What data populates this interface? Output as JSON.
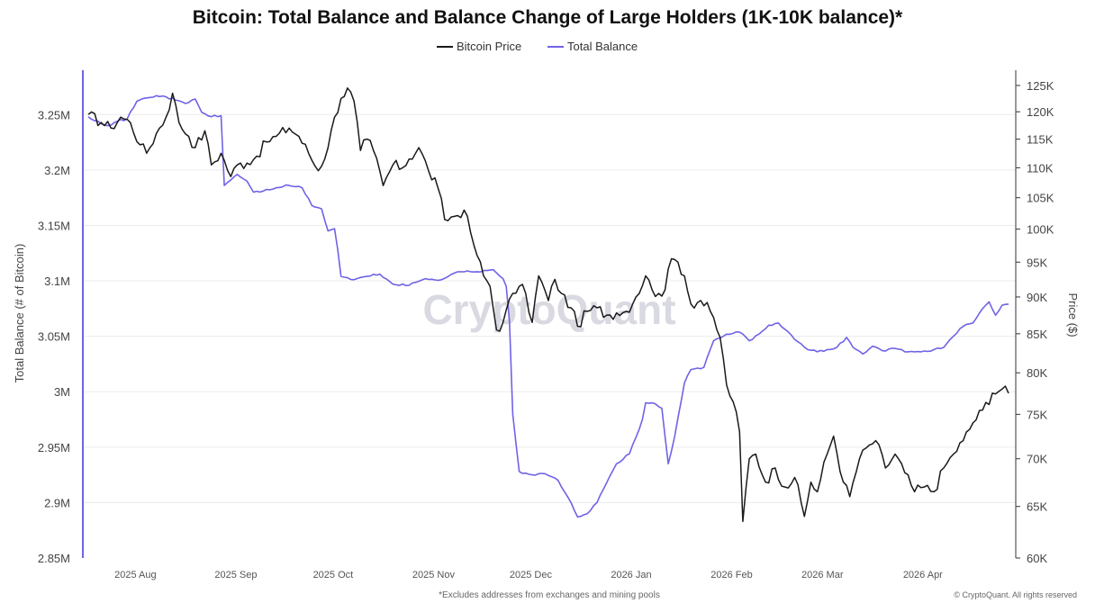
{
  "chart_data": {
    "type": "line",
    "title": "Bitcoin: Total Balance and Balance Change of Large Holders (1K-10K balance)*",
    "ylabel_left": "Total Balance (# of Bitcoin)",
    "ylabel_right": "Price ($)",
    "left_axis": {
      "ticks": [
        "3.25M",
        "3.2M",
        "3.15M",
        "3.1M",
        "3.05M",
        "3M",
        "2.95M",
        "2.9M",
        "2.85M"
      ],
      "tick_values": [
        3250000,
        3200000,
        3150000,
        3100000,
        3050000,
        3000000,
        2950000,
        2900000,
        2850000
      ],
      "ylim": [
        2850000,
        3290000
      ]
    },
    "right_axis": {
      "ticks": [
        "125K",
        "120K",
        "115K",
        "110K",
        "105K",
        "100K",
        "95K",
        "90K",
        "85K",
        "80K",
        "75K",
        "70K",
        "65K",
        "60K"
      ],
      "tick_values": [
        125000,
        120000,
        115000,
        110000,
        105000,
        100000,
        95000,
        90000,
        85000,
        80000,
        75000,
        70000,
        65000,
        60000
      ],
      "scale": "log",
      "ylim": [
        60000,
        128000
      ]
    },
    "x_axis": {
      "ticks": [
        "2025 Aug",
        "2025 Sep",
        "2025 Oct",
        "2025 Nov",
        "2025 Dec",
        "2026 Jan",
        "2026 Feb",
        "2026 Mar",
        "2026 Apr"
      ],
      "tick_dates": [
        "2025-08-01",
        "2025-09-01",
        "2025-10-01",
        "2025-11-01",
        "2025-12-01",
        "2026-01-01",
        "2026-02-01",
        "2026-03-01",
        "2026-04-01"
      ],
      "range": [
        "2025-07-18",
        "2026-04-28"
      ]
    },
    "legend": {
      "position": "top-center"
    },
    "series": [
      {
        "name": "Bitcoin Price",
        "axis": "right",
        "color": "#1a1a1a",
        "points": [
          [
            "2025-07-18",
            119500
          ],
          [
            "2025-07-22",
            118000
          ],
          [
            "2025-07-25",
            117000
          ],
          [
            "2025-07-28",
            119000
          ],
          [
            "2025-07-31",
            118000
          ],
          [
            "2025-08-03",
            114000
          ],
          [
            "2025-08-05",
            112500
          ],
          [
            "2025-08-08",
            116000
          ],
          [
            "2025-08-11",
            119000
          ],
          [
            "2025-08-13",
            123500
          ],
          [
            "2025-08-15",
            118000
          ],
          [
            "2025-08-18",
            115500
          ],
          [
            "2025-08-20",
            113500
          ],
          [
            "2025-08-23",
            116500
          ],
          [
            "2025-08-25",
            110500
          ],
          [
            "2025-08-28",
            112500
          ],
          [
            "2025-08-31",
            108500
          ],
          [
            "2025-09-02",
            110500
          ],
          [
            "2025-09-05",
            110800
          ],
          [
            "2025-09-08",
            112000
          ],
          [
            "2025-09-11",
            114500
          ],
          [
            "2025-09-14",
            115500
          ],
          [
            "2025-09-18",
            117000
          ],
          [
            "2025-09-21",
            115500
          ],
          [
            "2025-09-24",
            112500
          ],
          [
            "2025-09-27",
            109500
          ],
          [
            "2025-09-30",
            113500
          ],
          [
            "2025-10-02",
            119000
          ],
          [
            "2025-10-04",
            122500
          ],
          [
            "2025-10-06",
            124500
          ],
          [
            "2025-10-08",
            122000
          ],
          [
            "2025-10-10",
            113000
          ],
          [
            "2025-10-12",
            115000
          ],
          [
            "2025-10-14",
            113000
          ],
          [
            "2025-10-17",
            107000
          ],
          [
            "2025-10-20",
            110500
          ],
          [
            "2025-10-23",
            110000
          ],
          [
            "2025-10-25",
            111500
          ],
          [
            "2025-10-28",
            113500
          ],
          [
            "2025-10-31",
            109500
          ],
          [
            "2025-11-03",
            106500
          ],
          [
            "2025-11-05",
            101500
          ],
          [
            "2025-11-08",
            102000
          ],
          [
            "2025-11-11",
            103000
          ],
          [
            "2025-11-13",
            99500
          ],
          [
            "2025-11-15",
            96000
          ],
          [
            "2025-11-17",
            93000
          ],
          [
            "2025-11-19",
            91500
          ],
          [
            "2025-11-21",
            85500
          ],
          [
            "2025-11-23",
            86500
          ],
          [
            "2025-11-26",
            90500
          ],
          [
            "2025-11-28",
            91500
          ],
          [
            "2025-11-30",
            90500
          ],
          [
            "2025-12-02",
            86500
          ],
          [
            "2025-12-04",
            93000
          ],
          [
            "2025-12-07",
            89500
          ],
          [
            "2025-12-09",
            92500
          ],
          [
            "2025-12-11",
            90500
          ],
          [
            "2025-12-14",
            88500
          ],
          [
            "2025-12-16",
            86000
          ],
          [
            "2025-12-19",
            88000
          ],
          [
            "2025-12-22",
            88500
          ],
          [
            "2025-12-25",
            87500
          ],
          [
            "2025-12-28",
            87800
          ],
          [
            "2025-12-31",
            88000
          ],
          [
            "2026-01-03",
            90000
          ],
          [
            "2026-01-06",
            93000
          ],
          [
            "2026-01-08",
            91000
          ],
          [
            "2026-01-10",
            90500
          ],
          [
            "2026-01-12",
            91000
          ],
          [
            "2026-01-14",
            95500
          ],
          [
            "2026-01-16",
            95000
          ],
          [
            "2026-01-18",
            93000
          ],
          [
            "2026-01-20",
            89000
          ],
          [
            "2026-01-23",
            89500
          ],
          [
            "2026-01-26",
            88000
          ],
          [
            "2026-01-29",
            84500
          ],
          [
            "2026-01-31",
            78500
          ],
          [
            "2026-02-02",
            76500
          ],
          [
            "2026-02-04",
            73000
          ],
          [
            "2026-02-05",
            63500
          ],
          [
            "2026-02-07",
            70000
          ],
          [
            "2026-02-09",
            70500
          ],
          [
            "2026-02-12",
            67500
          ],
          [
            "2026-02-15",
            69000
          ],
          [
            "2026-02-18",
            67000
          ],
          [
            "2026-02-21",
            68000
          ],
          [
            "2026-02-24",
            64000
          ],
          [
            "2026-02-26",
            67500
          ],
          [
            "2026-02-28",
            66500
          ],
          [
            "2026-03-03",
            70500
          ],
          [
            "2026-03-05",
            72500
          ],
          [
            "2026-03-08",
            67500
          ],
          [
            "2026-03-10",
            66000
          ],
          [
            "2026-03-13",
            70000
          ],
          [
            "2026-03-16",
            71500
          ],
          [
            "2026-03-18",
            72000
          ],
          [
            "2026-03-21",
            69000
          ],
          [
            "2026-03-24",
            70500
          ],
          [
            "2026-03-27",
            68500
          ],
          [
            "2026-03-30",
            66500
          ],
          [
            "2026-04-02",
            67000
          ],
          [
            "2026-04-05",
            66500
          ],
          [
            "2026-04-08",
            69000
          ],
          [
            "2026-04-11",
            70500
          ],
          [
            "2026-04-14",
            72000
          ],
          [
            "2026-04-17",
            74000
          ],
          [
            "2026-04-20",
            75500
          ],
          [
            "2026-04-23",
            77500
          ],
          [
            "2026-04-26",
            78000
          ],
          [
            "2026-04-28",
            77500
          ]
        ]
      },
      {
        "name": "Total Balance",
        "axis": "left",
        "color": "#6f63e6",
        "points": [
          [
            "2025-07-18",
            3248000
          ],
          [
            "2025-07-21",
            3244000
          ],
          [
            "2025-07-24",
            3240000
          ],
          [
            "2025-07-27",
            3244000
          ],
          [
            "2025-07-30",
            3246000
          ],
          [
            "2025-08-02",
            3262000
          ],
          [
            "2025-08-05",
            3265000
          ],
          [
            "2025-08-08",
            3267000
          ],
          [
            "2025-08-11",
            3266000
          ],
          [
            "2025-08-14",
            3263000
          ],
          [
            "2025-08-17",
            3260000
          ],
          [
            "2025-08-20",
            3264000
          ],
          [
            "2025-08-22",
            3252000
          ],
          [
            "2025-08-25",
            3248000
          ],
          [
            "2025-08-28",
            3249000
          ],
          [
            "2025-08-29",
            3186000
          ],
          [
            "2025-09-02",
            3196000
          ],
          [
            "2025-09-05",
            3190000
          ],
          [
            "2025-09-07",
            3180000
          ],
          [
            "2025-09-10",
            3181000
          ],
          [
            "2025-09-14",
            3184000
          ],
          [
            "2025-09-18",
            3186000
          ],
          [
            "2025-09-22",
            3184000
          ],
          [
            "2025-09-25",
            3168000
          ],
          [
            "2025-09-28",
            3165000
          ],
          [
            "2025-09-30",
            3145000
          ],
          [
            "2025-10-02",
            3147000
          ],
          [
            "2025-10-03",
            3128000
          ],
          [
            "2025-10-04",
            3104000
          ],
          [
            "2025-10-08",
            3101000
          ],
          [
            "2025-10-12",
            3104000
          ],
          [
            "2025-10-16",
            3106000
          ],
          [
            "2025-10-20",
            3097000
          ],
          [
            "2025-10-25",
            3096000
          ],
          [
            "2025-10-30",
            3102000
          ],
          [
            "2025-11-04",
            3101000
          ],
          [
            "2025-11-08",
            3107000
          ],
          [
            "2025-11-12",
            3109000
          ],
          [
            "2025-11-16",
            3108000
          ],
          [
            "2025-11-20",
            3110000
          ],
          [
            "2025-11-23",
            3102000
          ],
          [
            "2025-11-24",
            3095000
          ],
          [
            "2025-11-25",
            3063000
          ],
          [
            "2025-11-26",
            2980000
          ],
          [
            "2025-11-28",
            2928000
          ],
          [
            "2025-12-02",
            2925000
          ],
          [
            "2025-12-06",
            2926000
          ],
          [
            "2025-12-10",
            2920000
          ],
          [
            "2025-12-13",
            2905000
          ],
          [
            "2025-12-16",
            2887000
          ],
          [
            "2025-12-19",
            2890000
          ],
          [
            "2025-12-22",
            2900000
          ],
          [
            "2025-12-25",
            2918000
          ],
          [
            "2025-12-28",
            2935000
          ],
          [
            "2026-01-01",
            2944000
          ],
          [
            "2026-01-04",
            2966000
          ],
          [
            "2026-01-05",
            2975000
          ],
          [
            "2026-01-06",
            2990000
          ],
          [
            "2026-01-09",
            2989000
          ],
          [
            "2026-01-11",
            2985000
          ],
          [
            "2026-01-13",
            2935000
          ],
          [
            "2026-01-15",
            2960000
          ],
          [
            "2026-01-18",
            3008000
          ],
          [
            "2026-01-20",
            3020000
          ],
          [
            "2026-01-24",
            3022000
          ],
          [
            "2026-01-27",
            3046000
          ],
          [
            "2026-01-30",
            3050000
          ],
          [
            "2026-02-03",
            3054000
          ],
          [
            "2026-02-05",
            3052000
          ],
          [
            "2026-02-07",
            3046000
          ],
          [
            "2026-02-10",
            3052000
          ],
          [
            "2026-02-13",
            3060000
          ],
          [
            "2026-02-16",
            3062000
          ],
          [
            "2026-02-19",
            3054000
          ],
          [
            "2026-02-22",
            3045000
          ],
          [
            "2026-02-25",
            3038000
          ],
          [
            "2026-02-28",
            3036000
          ],
          [
            "2026-03-03",
            3038000
          ],
          [
            "2026-03-06",
            3040000
          ],
          [
            "2026-03-09",
            3049000
          ],
          [
            "2026-03-11",
            3040000
          ],
          [
            "2026-03-14",
            3034000
          ],
          [
            "2026-03-17",
            3041000
          ],
          [
            "2026-03-20",
            3037000
          ],
          [
            "2026-03-24",
            3039000
          ],
          [
            "2026-03-28",
            3036000
          ],
          [
            "2026-04-01",
            3036000
          ],
          [
            "2026-04-05",
            3038000
          ],
          [
            "2026-04-08",
            3040000
          ],
          [
            "2026-04-11",
            3050000
          ],
          [
            "2026-04-14",
            3059000
          ],
          [
            "2026-04-17",
            3062000
          ],
          [
            "2026-04-20",
            3075000
          ],
          [
            "2026-04-22",
            3081000
          ],
          [
            "2026-04-24",
            3069000
          ],
          [
            "2026-04-26",
            3078000
          ],
          [
            "2026-04-28",
            3079000
          ]
        ]
      }
    ]
  },
  "legend_items": [
    {
      "name": "Bitcoin Price",
      "color": "#1a1a1a"
    },
    {
      "name": "Total Balance",
      "color": "#6f63e6"
    }
  ],
  "watermark": "CryptoQuant",
  "footnote": "*Excludes addresses from exchanges and mining pools",
  "copyright": "© CryptoQuant. All rights reserved"
}
